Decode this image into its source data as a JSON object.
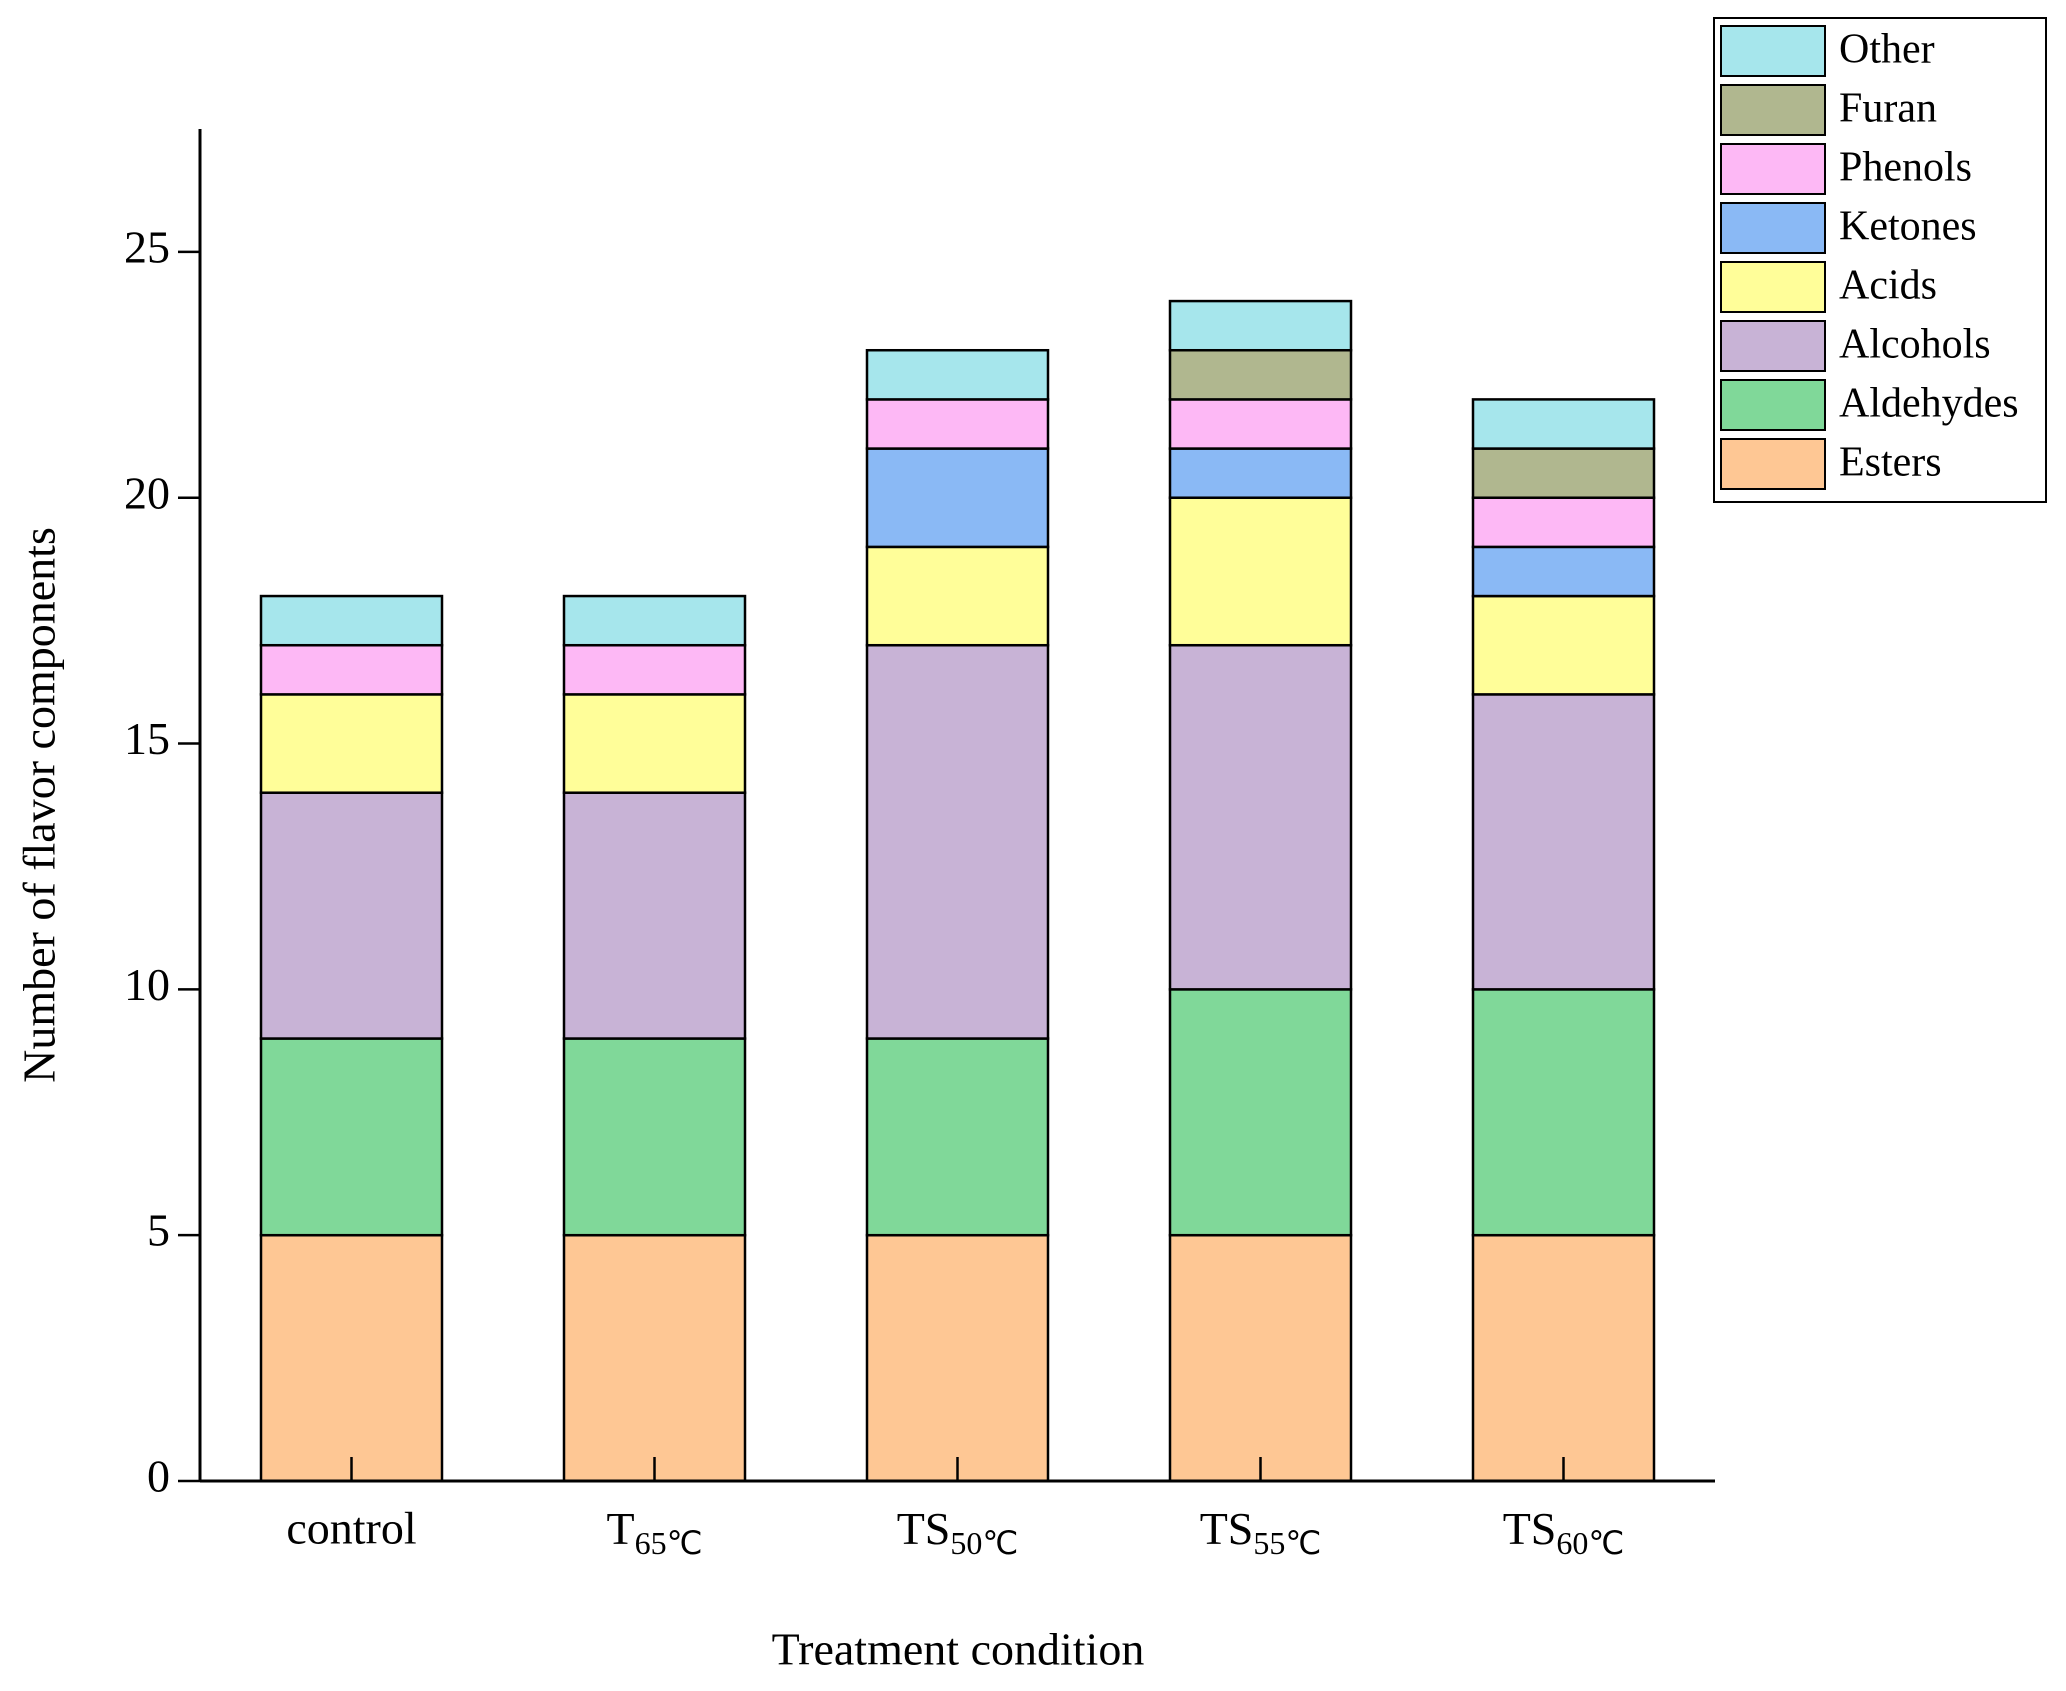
{
  "chart_data": {
    "type": "stacked_bar",
    "x_label": "Treatment condition",
    "y_label": "Number of flavor components",
    "categories": [
      "control",
      "T65℃",
      "TS50℃",
      "TS55℃",
      "TS60℃"
    ],
    "series": [
      {
        "name": "Esters",
        "color": "#fec794",
        "values": [
          5,
          5,
          5,
          5,
          5
        ]
      },
      {
        "name": "Aldehydes",
        "color": "#80d899",
        "values": [
          4,
          4,
          4,
          5,
          5
        ]
      },
      {
        "name": "Alcohols",
        "color": "#c8b3d6",
        "values": [
          5,
          5,
          8,
          7,
          6
        ]
      },
      {
        "name": "Acids",
        "color": "#fffe99",
        "values": [
          2,
          2,
          2,
          3,
          2
        ]
      },
      {
        "name": "Ketones",
        "color": "#8ab9f5",
        "values": [
          0,
          0,
          2,
          1,
          1
        ]
      },
      {
        "name": "Phenols",
        "color": "#fdb8f5",
        "values": [
          1,
          1,
          1,
          1,
          1
        ]
      },
      {
        "name": "Furan",
        "color": "#b0b78f",
        "values": [
          0,
          0,
          0,
          1,
          1
        ]
      },
      {
        "name": "Other",
        "color": "#a6e6ec",
        "values": [
          1,
          1,
          1,
          1,
          1
        ]
      }
    ],
    "ylim": [
      0,
      27.5
    ],
    "yticks": [
      0,
      5,
      10,
      15,
      20,
      25
    ],
    "legend": "top-right"
  }
}
